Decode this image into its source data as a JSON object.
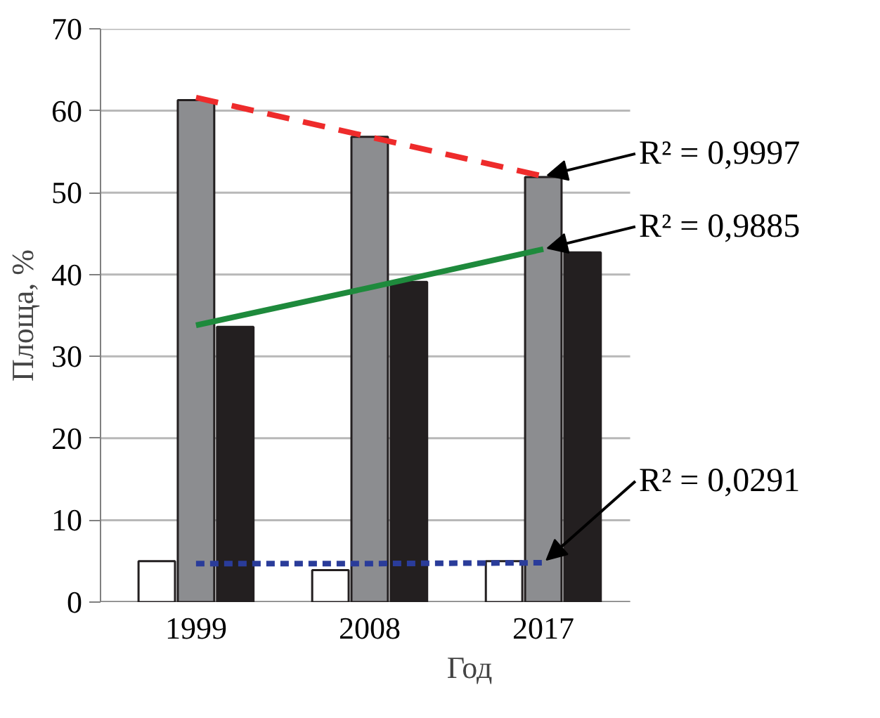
{
  "chart_data": {
    "type": "bar",
    "xlabel": "Год",
    "ylabel": "Площа, %",
    "categories": [
      "1999",
      "2008",
      "2017"
    ],
    "series": [
      {
        "color": "#ffffff",
        "values": [
          5,
          3.9,
          5
        ]
      },
      {
        "color": "#8c8d90",
        "values": [
          61.3,
          56.8,
          51.9
        ]
      },
      {
        "color": "#231f20",
        "values": [
          33.6,
          39.1,
          42.7
        ]
      },
      {
        "type": "line",
        "color": "#ee2b2b",
        "line_style": "dashed",
        "values": [
          61.6,
          56.8,
          52.0
        ]
      },
      {
        "type": "line",
        "color": "#1e8a3c",
        "line_style": "solid",
        "values": [
          33.8,
          38.4,
          43.1
        ]
      },
      {
        "type": "line",
        "color": "#2a3c9a",
        "line_style": "dotted",
        "values": [
          4.7,
          4.7,
          4.8
        ]
      }
    ],
    "ylim": [
      0,
      70
    ],
    "yticks": [
      0,
      10,
      20,
      30,
      40,
      50,
      60,
      70
    ],
    "grid": "y",
    "annotations": [
      {
        "text": "R² = 0,9997",
        "x": "2017",
        "y": 52.0
      },
      {
        "text": "R² = 0,9885",
        "x": "2017",
        "y": 43.1
      },
      {
        "text": "R² = 0,0291",
        "x": "2017",
        "y": 4.8
      }
    ]
  }
}
